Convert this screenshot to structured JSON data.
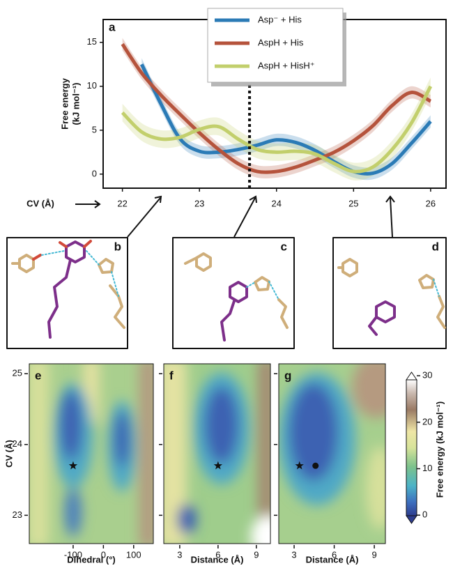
{
  "chart_data": [
    {
      "type": "line",
      "label": "a",
      "y_label": [
        "Free energy",
        "(kJ mol⁻¹)"
      ],
      "x_label": "CV (Å)",
      "x": [
        22,
        22.25,
        22.5,
        22.75,
        23,
        23.25,
        23.5,
        23.75,
        24,
        24.25,
        24.5,
        24.75,
        25,
        25.25,
        25.5,
        25.75,
        26
      ],
      "series": [
        {
          "name": "Asp⁻ + His",
          "color": "#2b7bb6",
          "error": 0.7,
          "values": [
            null,
            12.5,
            8,
            4,
            2.6,
            2.5,
            2.8,
            3.3,
            3.9,
            3.6,
            2.7,
            1.4,
            0.3,
            0.1,
            1.2,
            3.5,
            6
          ]
        },
        {
          "name": "AspH + His",
          "color": "#b5533c",
          "error": 0.7,
          "values": [
            14.8,
            11.5,
            9,
            6.8,
            4.7,
            2.8,
            1.2,
            0.3,
            0.3,
            0.8,
            1.6,
            2.5,
            3.8,
            5.5,
            7.8,
            9.3,
            8.3
          ]
        },
        {
          "name": "AspH + HisH⁺",
          "color": "#c2cf6c",
          "error": 1.0,
          "values": [
            7,
            4.8,
            4,
            4.2,
            5.1,
            5.4,
            4,
            2.8,
            2.5,
            2.6,
            2.3,
            1.2,
            0.3,
            0.8,
            2.8,
            5.8,
            10
          ]
        }
      ],
      "marker_x": 23.65,
      "xlim": [
        21.75,
        26.2
      ],
      "xticks": [
        22,
        23,
        24,
        25,
        26
      ],
      "ylim": [
        -1.6,
        17.6
      ],
      "yticks": [
        0,
        5,
        10,
        15
      ]
    },
    {
      "type": "contour",
      "label": "e",
      "x_label": "Dihedral (°)",
      "y_label": "CV (Å)",
      "xlim": [
        -245,
        165
      ],
      "xticks": [
        -100,
        0,
        100
      ],
      "ylim": [
        22.6,
        25.14
      ],
      "yticks": [
        23,
        24,
        25
      ],
      "points": [
        {
          "x": -100,
          "y": 23.7,
          "marker": "star"
        }
      ]
    },
    {
      "type": "contour",
      "label": "f",
      "x_label": "Distance (Å)",
      "xlim": [
        1.75,
        10.1
      ],
      "xticks": [
        3,
        6,
        9
      ],
      "ylim": [
        22.6,
        25.14
      ],
      "yticks": [
        23,
        24,
        25
      ],
      "points": [
        {
          "x": 6,
          "y": 23.7,
          "marker": "star"
        }
      ]
    },
    {
      "type": "contour",
      "label": "g",
      "x_label": "Distance (Å)",
      "xlim": [
        1.85,
        9.83
      ],
      "xticks": [
        3,
        6,
        9
      ],
      "ylim": [
        22.6,
        25.14
      ],
      "yticks": [
        23,
        24,
        25
      ],
      "points": [
        {
          "x": 3.4,
          "y": 23.7,
          "marker": "star"
        },
        {
          "x": 4.6,
          "y": 23.7,
          "marker": "circle"
        }
      ]
    }
  ],
  "colorbar": {
    "label": "Free energy (kJ mol⁻¹)",
    "clim": [
      -2,
      31
    ],
    "ticks": [
      0,
      10,
      20,
      30
    ]
  },
  "structures": [
    {
      "label": "b"
    },
    {
      "label": "c"
    },
    {
      "label": "d"
    }
  ]
}
